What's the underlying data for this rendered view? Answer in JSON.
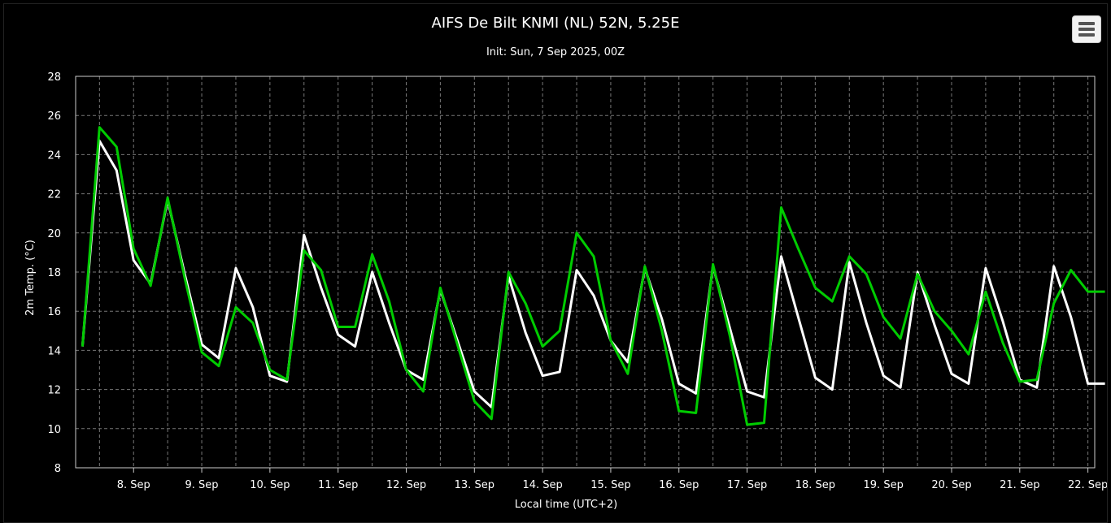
{
  "chart_data": {
    "type": "line",
    "title": "AIFS De Bilt KNMI (NL) 52N, 5.25E",
    "subtitle": "Init: Sun, 7 Sep 2025, 00Z",
    "xlabel": "Local time (UTC+2)",
    "ylabel": "2m Temp. (°C)",
    "ylim": [
      8,
      28
    ],
    "yticks": [
      "8",
      "10",
      "12",
      "14",
      "16",
      "18",
      "20",
      "22",
      "24",
      "26",
      "28"
    ],
    "x_range_days": [
      7.15,
      22.1
    ],
    "xticks": [
      {
        "day": 8,
        "label": "8. Sep"
      },
      {
        "day": 9,
        "label": "9. Sep"
      },
      {
        "day": 10,
        "label": "10. Sep"
      },
      {
        "day": 11,
        "label": "11. Sep"
      },
      {
        "day": 12,
        "label": "12. Sep"
      },
      {
        "day": 13,
        "label": "13. Sep"
      },
      {
        "day": 14,
        "label": "14. Sep"
      },
      {
        "day": 15,
        "label": "15. Sep"
      },
      {
        "day": 16,
        "label": "16. Sep"
      },
      {
        "day": 17,
        "label": "17. Sep"
      },
      {
        "day": 18,
        "label": "18. Sep"
      },
      {
        "day": 19,
        "label": "19. Sep"
      },
      {
        "day": 20,
        "label": "20. Sep"
      },
      {
        "day": 21,
        "label": "21. Sep"
      },
      {
        "day": 22,
        "label": "22. Sep"
      }
    ],
    "grid": true,
    "x": [
      7.25,
      7.5,
      7.75,
      8.0,
      8.25,
      8.5,
      8.75,
      9.0,
      9.25,
      9.5,
      9.75,
      10.0,
      10.25,
      10.5,
      10.75,
      11.0,
      11.25,
      11.5,
      11.75,
      12.0,
      12.25,
      12.5,
      12.75,
      13.0,
      13.25,
      13.5,
      13.75,
      14.0,
      14.25,
      14.5,
      14.75,
      15.0,
      15.25,
      15.5,
      15.75,
      16.0,
      16.25,
      16.5,
      16.75,
      17.0,
      17.25,
      17.5,
      17.75,
      18.0,
      18.25,
      18.5,
      18.75,
      19.0,
      19.25,
      19.5,
      19.75,
      20.0,
      20.25,
      20.5,
      20.75,
      21.0,
      21.25,
      21.5,
      21.75,
      22.0,
      22.25
    ],
    "series": [
      {
        "color": "#ffffff",
        "values": [
          14.2,
          24.7,
          23.2,
          18.6,
          17.4,
          21.7,
          17.9,
          14.3,
          13.6,
          18.2,
          16.2,
          12.7,
          12.4,
          19.9,
          17.2,
          14.8,
          14.2,
          18.0,
          15.4,
          13.0,
          12.5,
          17.1,
          14.5,
          11.9,
          11.1,
          17.8,
          14.9,
          12.7,
          12.9,
          18.1,
          16.8,
          14.5,
          13.4,
          18.2,
          15.6,
          12.3,
          11.8,
          18.3,
          15.1,
          11.9,
          11.6,
          18.8,
          15.7,
          12.6,
          12.0,
          18.5,
          15.4,
          12.7,
          12.1,
          18.0,
          15.3,
          12.8,
          12.3,
          18.2,
          15.5,
          12.5,
          12.1,
          18.3,
          15.7,
          12.3,
          12.3
        ]
      },
      {
        "color": "#00cc00",
        "values": [
          14.2,
          25.4,
          24.4,
          19.2,
          17.3,
          21.8,
          17.7,
          13.9,
          13.2,
          16.2,
          15.4,
          13.0,
          12.5,
          19.1,
          18.1,
          15.2,
          15.2,
          18.9,
          16.5,
          13.0,
          11.9,
          17.2,
          14.3,
          11.4,
          10.5,
          18.0,
          16.4,
          14.2,
          15.0,
          20.0,
          18.8,
          14.5,
          12.8,
          18.3,
          15.0,
          10.9,
          10.8,
          18.4,
          14.7,
          10.2,
          10.3,
          21.3,
          19.2,
          17.2,
          16.5,
          18.8,
          17.9,
          15.7,
          14.6,
          17.9,
          16.0,
          15.0,
          13.8,
          17.0,
          14.4,
          12.4,
          12.5,
          16.4,
          18.1,
          17.0,
          17.0
        ]
      }
    ]
  }
}
